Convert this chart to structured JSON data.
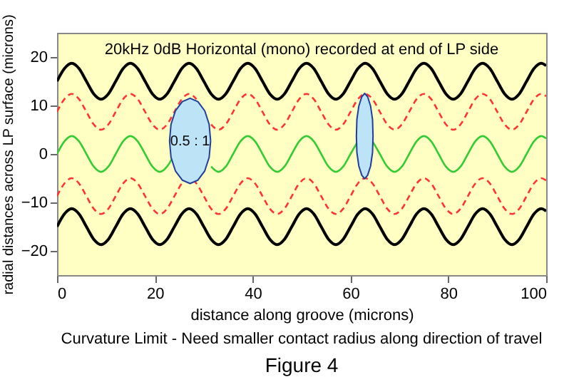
{
  "chart_data": {
    "type": "line",
    "title": "20kHz 0dB Horizontal (mono) recorded at end of LP side",
    "xlabel": "distance along groove (microns)",
    "ylabel": "radial distances across LP surface (microns)",
    "xlim": [
      0,
      100
    ],
    "ylim": [
      -25,
      25
    ],
    "xticks": [
      0,
      20,
      40,
      60,
      80,
      100
    ],
    "yticks": [
      -20,
      -10,
      0,
      10,
      20
    ],
    "grid": false,
    "x": [
      0,
      1.5,
      3,
      4.5,
      6,
      7.5,
      9,
      10.5,
      12,
      13.5,
      15,
      16.5,
      18,
      19.5,
      21,
      22.5,
      24,
      25.5,
      27,
      28.5,
      30,
      31.5,
      33,
      34.5,
      36,
      37.5,
      39,
      40.5,
      42,
      43.5,
      45,
      46.5,
      48,
      49.5,
      51,
      52.5,
      54,
      55.5,
      57,
      58.5,
      60,
      61.5,
      63,
      64.5,
      66,
      67.5,
      69,
      70.5,
      72,
      73.5,
      75,
      76.5,
      78,
      79.5,
      81,
      82.5,
      84,
      85.5,
      87,
      88.5,
      90,
      91.5,
      93,
      94.5,
      96,
      97.5,
      99,
      100
    ],
    "series": [
      {
        "color": "#000000",
        "line_style": "solid",
        "values": [
          15,
          17.6,
          18.7,
          17.6,
          15,
          12.4,
          11.3,
          12.4,
          15,
          17.6,
          18.7,
          17.6,
          15,
          12.4,
          11.3,
          12.4,
          15,
          17.6,
          18.7,
          17.6,
          15,
          12.4,
          11.3,
          12.4,
          15,
          17.6,
          18.7,
          17.6,
          15,
          12.4,
          11.3,
          12.4,
          15,
          17.6,
          18.7,
          17.6,
          15,
          12.4,
          11.3,
          12.4,
          15,
          17.6,
          18.7,
          17.6,
          15,
          12.4,
          11.3,
          12.4,
          15,
          17.6,
          18.7,
          17.6,
          15,
          12.4,
          11.3,
          12.4,
          15,
          17.6,
          18.7,
          17.6,
          15,
          12.4,
          11.3,
          12.4,
          15,
          17.6,
          18.7,
          18.2
        ]
      },
      {
        "color": "#ff3333",
        "line_style": "dashed",
        "values": [
          8.7,
          11.3,
          12.4,
          11.3,
          8.7,
          6.1,
          5,
          6.1,
          8.7,
          11.3,
          12.4,
          11.3,
          8.7,
          6.1,
          5,
          6.1,
          8.7,
          11.3,
          12.4,
          11.3,
          null,
          6.1,
          5,
          6.1,
          8.7,
          11.3,
          12.4,
          11.3,
          8.7,
          6.1,
          5,
          6.1,
          8.7,
          11.3,
          12.4,
          11.3,
          8.7,
          6.1,
          5,
          6.1,
          8.7,
          11.3,
          12.4,
          11.3,
          8.7,
          6.1,
          5,
          6.1,
          8.7,
          11.3,
          12.4,
          11.3,
          8.7,
          6.1,
          5,
          6.1,
          8.7,
          11.3,
          12.4,
          11.3,
          8.7,
          6.1,
          5,
          6.1,
          8.7,
          11.3,
          12.4,
          11.9
        ]
      },
      {
        "color": "#33cc33",
        "line_style": "solid",
        "values": [
          0,
          2.6,
          3.7,
          2.6,
          0,
          -2.6,
          -3.7,
          -2.6,
          0,
          2.6,
          3.7,
          2.6,
          0,
          -2.6,
          -3.7,
          -2.6,
          0,
          null,
          null,
          null,
          null,
          -2.6,
          -3.7,
          -2.6,
          0,
          2.6,
          3.7,
          2.6,
          0,
          -2.6,
          -3.7,
          -2.6,
          0,
          2.6,
          3.7,
          2.6,
          0,
          -2.6,
          -3.7,
          -2.6,
          0,
          2.6,
          null,
          2.6,
          0,
          -2.6,
          -3.7,
          -2.6,
          0,
          2.6,
          3.7,
          2.6,
          0,
          -2.6,
          -3.7,
          -2.6,
          0,
          2.6,
          3.7,
          2.6,
          0,
          -2.6,
          -3.7,
          -2.6,
          0,
          2.6,
          3.7,
          3.2
        ]
      },
      {
        "color": "#ff3333",
        "line_style": "dashed",
        "values": [
          -8.7,
          -6.1,
          -5,
          -6.1,
          -8.7,
          -11.3,
          -12.4,
          -11.3,
          -8.7,
          -6.1,
          -5,
          -6.1,
          -8.7,
          -11.3,
          -12.4,
          -11.3,
          -8.7,
          -6.1,
          -5,
          -6.1,
          -8.7,
          -11.3,
          -12.4,
          -11.3,
          -8.7,
          -6.1,
          -5,
          -6.1,
          -8.7,
          -11.3,
          -12.4,
          -11.3,
          -8.7,
          -6.1,
          -5,
          -6.1,
          -8.7,
          -11.3,
          -12.4,
          -11.3,
          -8.7,
          -6.1,
          -5,
          -6.1,
          -8.7,
          -11.3,
          -12.4,
          -11.3,
          -8.7,
          -6.1,
          -5,
          -6.1,
          -8.7,
          -11.3,
          -12.4,
          -11.3,
          -8.7,
          -6.1,
          -5,
          -6.1,
          -8.7,
          -11.3,
          -12.4,
          -11.3,
          -8.7,
          -6.1,
          -5,
          -5.5
        ]
      },
      {
        "color": "#000000",
        "line_style": "solid",
        "values": [
          -15,
          -12.4,
          -11.3,
          -12.4,
          -15,
          -17.6,
          -18.7,
          -17.6,
          -15,
          -12.4,
          -11.3,
          -12.4,
          -15,
          -17.6,
          -18.7,
          -17.6,
          -15,
          -12.4,
          -11.3,
          -12.4,
          -15,
          -17.6,
          -18.7,
          -17.6,
          -15,
          -12.4,
          -11.3,
          -12.4,
          -15,
          -17.6,
          -18.7,
          -17.6,
          -15,
          -12.4,
          -11.3,
          -12.4,
          -15,
          -17.6,
          -18.7,
          -17.6,
          -15,
          -12.4,
          -11.3,
          -12.4,
          -15,
          -17.6,
          -18.7,
          -17.6,
          -15,
          -12.4,
          -11.3,
          -12.4,
          -15,
          -17.6,
          -18.7,
          -17.6,
          -15,
          -12.4,
          -11.3,
          -12.4,
          -15,
          -17.6,
          -18.7,
          -17.6,
          -15,
          -12.4,
          -11.3,
          -11.8
        ]
      },
      {
        "type": "area",
        "color": "#bde3f7",
        "x": [
          31.4,
          31.1,
          30.2,
          28.8,
          27.2,
          25.6,
          24.2,
          23.3,
          23,
          23.3,
          24.2,
          25.6,
          27.2,
          28.8,
          30.2,
          31.1,
          31.4
        ],
        "values": [
          2.7,
          6.1,
          8.9,
          10.8,
          11.5,
          10.8,
          8.9,
          6.1,
          2.7,
          -0.7,
          -3.5,
          -5.4,
          -6.1,
          -5.4,
          -3.5,
          -0.7,
          2.7
        ]
      },
      {
        "type": "area",
        "color": "#bde3f7",
        "x": [
          64.6,
          64.5,
          64.1,
          63.5,
          62.9,
          62.3,
          61.7,
          61.3,
          61.2,
          61.3,
          61.7,
          62.3,
          62.9,
          63.5,
          64.1,
          64.5,
          64.6
        ],
        "values": [
          3.7,
          7.1,
          9.9,
          11.8,
          12.5,
          11.8,
          9.9,
          7.1,
          3.7,
          0.3,
          -2.5,
          -4.4,
          -5.1,
          -4.4,
          -2.5,
          0.3,
          3.7
        ]
      }
    ],
    "annotations": [
      "0.5 : 1",
      "Curvature Limit  -  Need smaller contact radius along direction of travel",
      "Figure 4"
    ]
  }
}
